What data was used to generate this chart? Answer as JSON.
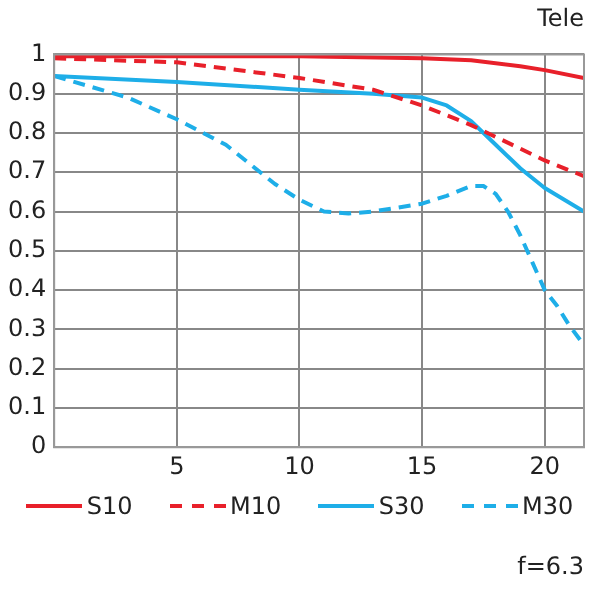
{
  "chart_data": {
    "type": "line",
    "annotations": [
      "Tele",
      "f=6.3"
    ],
    "xlim": [
      0,
      21.6
    ],
    "xticks": [
      5,
      10,
      15,
      20
    ],
    "ylim": [
      0,
      1
    ],
    "yticks": [
      0,
      0.1,
      0.2,
      0.3,
      0.4,
      0.5,
      0.6,
      0.7,
      0.8,
      0.9,
      1
    ],
    "grid": true,
    "legend": "bottom",
    "marker": "none",
    "series": [
      {
        "name": "S10",
        "color": "#e8202a",
        "line_style": "solid",
        "x": [
          0,
          5,
          10,
          15,
          17,
          19,
          20,
          21.6
        ],
        "values": [
          0.995,
          0.995,
          0.995,
          0.99,
          0.985,
          0.97,
          0.96,
          0.94
        ]
      },
      {
        "name": "M10",
        "color": "#e8202a",
        "line_style": "dashed",
        "x": [
          0,
          5,
          10,
          13,
          15,
          17,
          19,
          20,
          21.6
        ],
        "values": [
          0.99,
          0.98,
          0.94,
          0.91,
          0.87,
          0.82,
          0.76,
          0.73,
          0.69
        ]
      },
      {
        "name": "S30",
        "color": "#1eaee8",
        "line_style": "solid",
        "x": [
          0,
          5,
          10,
          13,
          15,
          16,
          17,
          18,
          19,
          20,
          21.6
        ],
        "values": [
          0.945,
          0.93,
          0.91,
          0.9,
          0.89,
          0.87,
          0.83,
          0.77,
          0.71,
          0.66,
          0.6
        ]
      },
      {
        "name": "M30",
        "color": "#1eaee8",
        "line_style": "dashed",
        "x": [
          0,
          3,
          5,
          7,
          8,
          9,
          10,
          11,
          12,
          13,
          15,
          16,
          17,
          17.5,
          18,
          18.5,
          19,
          19.5,
          20,
          20.5,
          21,
          21.6
        ],
        "values": [
          0.945,
          0.89,
          0.835,
          0.77,
          0.72,
          0.67,
          0.63,
          0.6,
          0.595,
          0.6,
          0.62,
          0.64,
          0.665,
          0.665,
          0.645,
          0.6,
          0.54,
          0.47,
          0.4,
          0.36,
          0.31,
          0.26
        ]
      }
    ]
  }
}
